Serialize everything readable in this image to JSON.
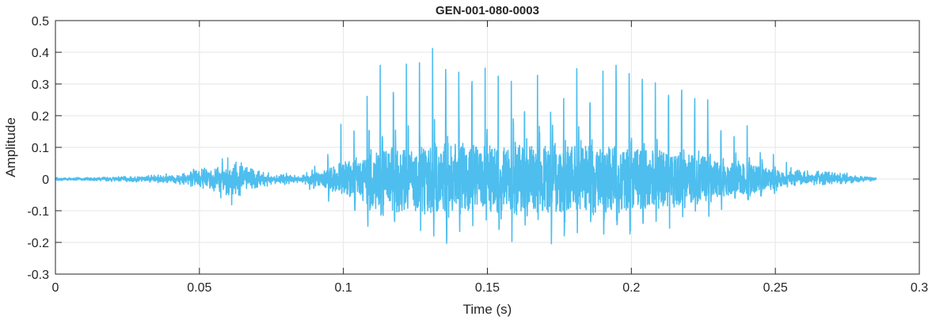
{
  "chart_data": {
    "type": "line",
    "title": "GEN-001-080-0003",
    "xlabel": "Time (s)",
    "ylabel": "Amplitude",
    "xlim": [
      0,
      0.3
    ],
    "ylim": [
      -0.3,
      0.5
    ],
    "xticks": [
      0,
      0.05,
      0.1,
      0.15,
      0.2,
      0.25,
      0.3
    ],
    "xtick_labels": [
      "0",
      "0.05",
      "0.1",
      "0.15",
      "0.2",
      "0.25",
      "0.3"
    ],
    "yticks": [
      -0.3,
      -0.2,
      -0.1,
      0,
      0.1,
      0.2,
      0.3,
      0.4,
      0.5
    ],
    "ytick_labels": [
      "-0.3",
      "-0.2",
      "-0.1",
      "0",
      "0.1",
      "0.2",
      "0.3",
      "0.4",
      "0.5"
    ],
    "grid": true,
    "line_color": "#4DBEEE",
    "series": [
      {
        "x": [
          0.0,
          0.01,
          0.02,
          0.03,
          0.04,
          0.05,
          0.055,
          0.06,
          0.065,
          0.07,
          0.075,
          0.08,
          0.085,
          0.09,
          0.095,
          0.1,
          0.105,
          0.11,
          0.115,
          0.12,
          0.125,
          0.13,
          0.135,
          0.14,
          0.145,
          0.15,
          0.155,
          0.16,
          0.165,
          0.17,
          0.175,
          0.18,
          0.185,
          0.19,
          0.195,
          0.2,
          0.205,
          0.21,
          0.215,
          0.22,
          0.225,
          0.23,
          0.235,
          0.24,
          0.245,
          0.25,
          0.255,
          0.26,
          0.265,
          0.27,
          0.275,
          0.28,
          0.285
        ],
        "upper": [
          0.005,
          0.005,
          0.008,
          0.01,
          0.02,
          0.04,
          0.05,
          0.08,
          0.05,
          0.03,
          0.02,
          0.02,
          0.01,
          0.04,
          0.09,
          0.19,
          0.18,
          0.37,
          0.35,
          0.38,
          0.35,
          0.41,
          0.42,
          0.4,
          0.35,
          0.35,
          0.36,
          0.36,
          0.36,
          0.35,
          0.35,
          0.35,
          0.35,
          0.34,
          0.36,
          0.33,
          0.31,
          0.3,
          0.31,
          0.3,
          0.28,
          0.18,
          0.19,
          0.17,
          0.12,
          0.11,
          0.04,
          0.03,
          0.03,
          0.03,
          0.02,
          0.01,
          0.005
        ],
        "lower": [
          -0.005,
          -0.005,
          -0.008,
          -0.01,
          -0.015,
          -0.03,
          -0.04,
          -0.1,
          -0.05,
          -0.03,
          -0.02,
          -0.02,
          -0.01,
          -0.05,
          -0.09,
          -0.14,
          -0.12,
          -0.21,
          -0.21,
          -0.2,
          -0.22,
          -0.23,
          -0.23,
          -0.22,
          -0.19,
          -0.25,
          -0.26,
          -0.26,
          -0.26,
          -0.25,
          -0.26,
          -0.26,
          -0.24,
          -0.24,
          -0.23,
          -0.21,
          -0.22,
          -0.19,
          -0.18,
          -0.16,
          -0.14,
          -0.13,
          -0.1,
          -0.1,
          -0.1,
          -0.07,
          -0.03,
          -0.02,
          -0.02,
          -0.02,
          -0.015,
          -0.01,
          -0.005
        ]
      }
    ]
  }
}
